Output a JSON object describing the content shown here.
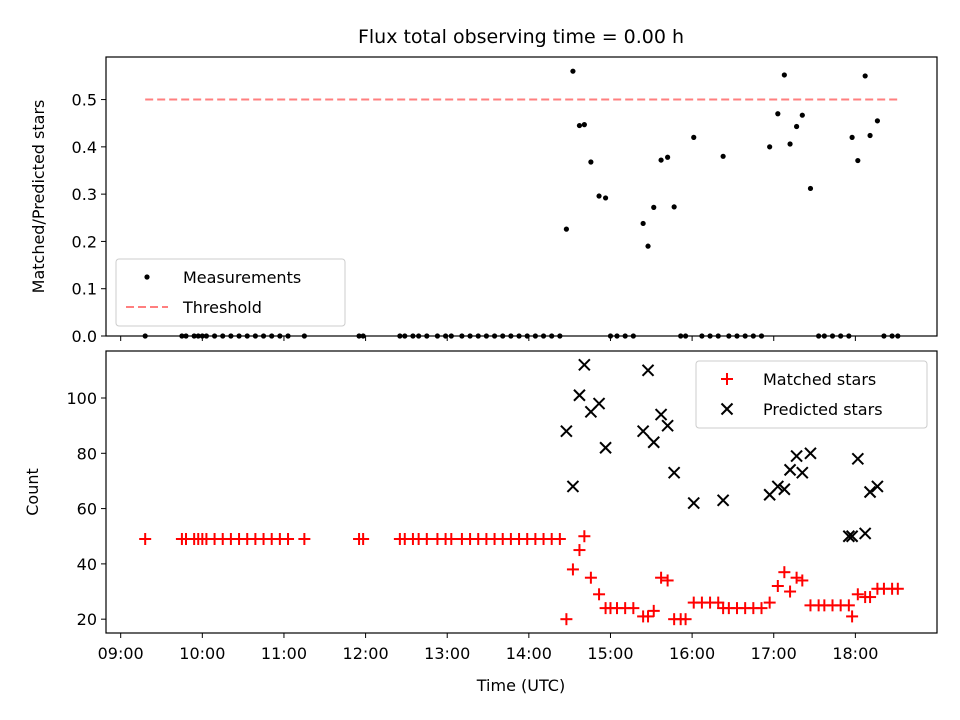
{
  "title": "Flux total observing time = 0.00 h",
  "colors": {
    "measure": "#000000",
    "threshold": "#ff7f7f",
    "matched": "#ff0000",
    "predicted": "#000000"
  },
  "chart_data": [
    {
      "type": "scatter",
      "ylabel": "Matched/Predicted stars",
      "ylim": [
        0,
        0.59
      ],
      "yticks": [
        0.0,
        0.1,
        0.2,
        0.3,
        0.4,
        0.5
      ],
      "yticklabels": [
        "0.0",
        "0.1",
        "0.2",
        "0.3",
        "0.4",
        "0.5"
      ],
      "legend": {
        "placement": "lower-left",
        "entries": [
          "Measurements",
          "Threshold"
        ]
      },
      "threshold": {
        "name": "Threshold",
        "value": 0.5,
        "x": [
          9.3,
          18.55
        ]
      },
      "series": [
        {
          "name": "Measurements",
          "x": [
            9.3,
            9.75,
            9.8,
            9.9,
            9.95,
            10.0,
            10.05,
            10.15,
            10.25,
            10.35,
            10.45,
            10.55,
            10.65,
            10.75,
            10.85,
            10.95,
            11.05,
            11.25,
            11.92,
            11.97,
            12.42,
            12.48,
            12.58,
            12.65,
            12.75,
            12.88,
            12.98,
            13.05,
            13.18,
            13.28,
            13.38,
            13.48,
            13.58,
            13.68,
            13.78,
            13.88,
            13.98,
            14.08,
            14.18,
            14.28,
            14.38,
            14.46,
            14.54,
            14.62,
            14.68,
            14.76,
            14.86,
            14.94,
            15.0,
            15.08,
            15.18,
            15.28,
            15.4,
            15.46,
            15.53,
            15.62,
            15.7,
            15.78,
            15.86,
            15.92,
            16.02,
            16.12,
            16.22,
            16.32,
            16.38,
            16.45,
            16.55,
            16.65,
            16.75,
            16.85,
            16.95,
            17.05,
            17.13,
            17.2,
            17.28,
            17.35,
            17.45,
            17.55,
            17.62,
            17.72,
            17.82,
            17.92,
            17.96,
            18.03,
            18.12,
            18.18,
            18.27,
            18.35,
            18.45,
            18.52
          ],
          "values": [
            0,
            0,
            0,
            0,
            0,
            0,
            0,
            0,
            0,
            0,
            0,
            0,
            0,
            0,
            0,
            0,
            0,
            0,
            0,
            0,
            0,
            0,
            0,
            0,
            0,
            0,
            0,
            0,
            0,
            0,
            0,
            0,
            0,
            0,
            0,
            0,
            0,
            0,
            0,
            0,
            0,
            0.226,
            0.56,
            0.445,
            0.447,
            0.368,
            0.296,
            0.292,
            0,
            0,
            0,
            0,
            0.238,
            0.19,
            0.272,
            0.372,
            0.378,
            0.273,
            0,
            0,
            0.42,
            0,
            0,
            0,
            0.38,
            0,
            0,
            0,
            0,
            0,
            0.4,
            0.47,
            0.552,
            0.406,
            0.443,
            0.467,
            0.312,
            0,
            0,
            0,
            0,
            0,
            0.42,
            0.371,
            0.55,
            0.424,
            0.455,
            0,
            0,
            0
          ]
        }
      ]
    },
    {
      "type": "scatter",
      "xlabel": "Time (UTC)",
      "ylabel": "Count",
      "ylim": [
        15,
        117
      ],
      "xlim": [
        8.82,
        19.0
      ],
      "yticks": [
        20,
        40,
        60,
        80,
        100
      ],
      "yticklabels": [
        "20",
        "40",
        "60",
        "80",
        "100"
      ],
      "xticks": [
        9,
        10,
        11,
        12,
        13,
        14,
        15,
        16,
        17,
        18
      ],
      "xticklabels": [
        "09:00",
        "10:00",
        "11:00",
        "12:00",
        "13:00",
        "14:00",
        "15:00",
        "16:00",
        "17:00",
        "18:00"
      ],
      "legend": {
        "placement": "upper-right",
        "entries": [
          "Matched stars",
          "Predicted stars"
        ]
      },
      "series": [
        {
          "name": "Matched stars",
          "x": [
            9.3,
            9.75,
            9.8,
            9.9,
            9.95,
            10.0,
            10.05,
            10.15,
            10.25,
            10.35,
            10.45,
            10.55,
            10.65,
            10.75,
            10.85,
            10.95,
            11.05,
            11.25,
            11.92,
            11.97,
            12.42,
            12.48,
            12.58,
            12.65,
            12.75,
            12.88,
            12.98,
            13.05,
            13.18,
            13.28,
            13.38,
            13.48,
            13.58,
            13.68,
            13.78,
            13.88,
            13.98,
            14.08,
            14.18,
            14.28,
            14.38,
            14.46,
            14.54,
            14.62,
            14.68,
            14.76,
            14.86,
            14.94,
            15.0,
            15.08,
            15.18,
            15.28,
            15.4,
            15.46,
            15.53,
            15.62,
            15.7,
            15.78,
            15.86,
            15.92,
            16.02,
            16.12,
            16.22,
            16.32,
            16.38,
            16.45,
            16.55,
            16.65,
            16.75,
            16.85,
            16.95,
            17.05,
            17.13,
            17.2,
            17.28,
            17.35,
            17.45,
            17.55,
            17.62,
            17.72,
            17.82,
            17.92,
            17.96,
            18.03,
            18.12,
            18.18,
            18.27,
            18.35,
            18.45,
            18.52
          ],
          "values": [
            49,
            49,
            49,
            49,
            49,
            49,
            49,
            49,
            49,
            49,
            49,
            49,
            49,
            49,
            49,
            49,
            49,
            49,
            49,
            49,
            49,
            49,
            49,
            49,
            49,
            49,
            49,
            49,
            49,
            49,
            49,
            49,
            49,
            49,
            49,
            49,
            49,
            49,
            49,
            49,
            49,
            20,
            38,
            45,
            50,
            35,
            29,
            24,
            24,
            24,
            24,
            24,
            21,
            21,
            23,
            35,
            34,
            20,
            20,
            20,
            26,
            26,
            26,
            26,
            24,
            24,
            24,
            24,
            24,
            24,
            26,
            32,
            37,
            30,
            35,
            34,
            25,
            25,
            25,
            25,
            25,
            25,
            21,
            29,
            28,
            28,
            31,
            31,
            31,
            31
          ]
        },
        {
          "name": "Predicted stars",
          "x": [
            14.46,
            14.54,
            14.62,
            14.68,
            14.76,
            14.86,
            14.94,
            15.4,
            15.46,
            15.53,
            15.62,
            15.7,
            15.78,
            16.02,
            16.38,
            16.95,
            17.05,
            17.13,
            17.2,
            17.28,
            17.35,
            17.45,
            17.92,
            17.96,
            18.03,
            18.12,
            18.18,
            18.27
          ],
          "values": [
            88,
            68,
            101,
            112,
            95,
            98,
            82,
            88,
            110,
            84,
            94,
            90,
            73,
            62,
            63,
            65,
            68,
            67,
            74,
            79,
            73,
            80,
            50,
            50,
            78,
            51,
            66,
            68
          ]
        }
      ]
    }
  ]
}
